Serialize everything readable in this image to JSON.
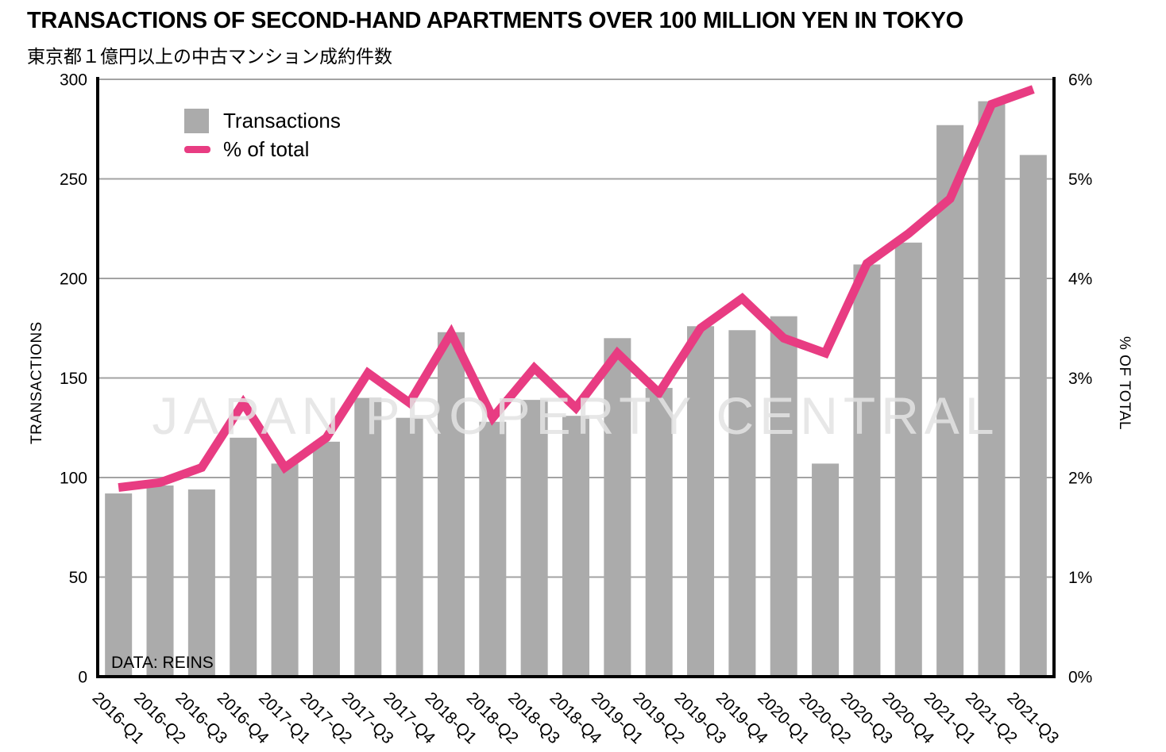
{
  "title": "TRANSACTIONS OF SECOND-HAND APARTMENTS OVER 100 MILLION YEN IN TOKYO",
  "subtitle_ja": "東京都１億円以上の中古マンション成約件数",
  "watermark": "JAPAN PROPERTY CENTRAL",
  "source_note": "DATA: REINS",
  "legend": {
    "transactions_label": "Transactions",
    "percent_label": "% of total"
  },
  "colors": {
    "bar": "#ABABAB",
    "line": "#E83C82",
    "gridline": "#A3A3A3",
    "axis": "#000000"
  },
  "chart_data": {
    "type": "bar",
    "subtype": "bar+line combo, dual axis",
    "categories": [
      "2016-Q1",
      "2016-Q2",
      "2016-Q3",
      "2016-Q4",
      "2017-Q1",
      "2017-Q2",
      "2017-Q3",
      "2017-Q4",
      "2018-Q1",
      "2018-Q2",
      "2018-Q3",
      "2018-Q4",
      "2019-Q1",
      "2019-Q2",
      "2019-Q3",
      "2019-Q4",
      "2020-Q1",
      "2020-Q2",
      "2020-Q3",
      "2020-Q4",
      "2021-Q1",
      "2021-Q2",
      "2021-Q3"
    ],
    "series": [
      {
        "name": "Transactions",
        "type": "bar",
        "axis": "left",
        "values": [
          92,
          96,
          94,
          120,
          107,
          118,
          140,
          130,
          173,
          128,
          139,
          131,
          170,
          145,
          176,
          174,
          181,
          107,
          207,
          218,
          277,
          289,
          262
        ]
      },
      {
        "name": "% of total",
        "type": "line",
        "axis": "right",
        "values": [
          1.9,
          1.95,
          2.1,
          2.75,
          2.1,
          2.4,
          3.05,
          2.75,
          3.45,
          2.6,
          3.1,
          2.7,
          3.25,
          2.85,
          3.5,
          3.8,
          3.4,
          3.25,
          4.15,
          4.45,
          4.8,
          5.75,
          5.9
        ]
      }
    ],
    "left_axis": {
      "label": "TRANSACTIONS",
      "min": 0,
      "max": 300,
      "tick_values": [
        0,
        50,
        100,
        150,
        200,
        250,
        300
      ]
    },
    "right_axis": {
      "label": "% OF TOTAL",
      "min": 0,
      "max": 6,
      "tick_labels": [
        "0%",
        "1%",
        "2%",
        "3%",
        "4%",
        "5%",
        "6%"
      ]
    },
    "grid": true,
    "legend_position": "top-left-inside",
    "title": "TRANSACTIONS OF SECOND-HAND APARTMENTS OVER 100 MILLION YEN IN TOKYO",
    "xlabel": "",
    "ylabel_left": "TRANSACTIONS",
    "ylabel_right": "% OF TOTAL"
  }
}
